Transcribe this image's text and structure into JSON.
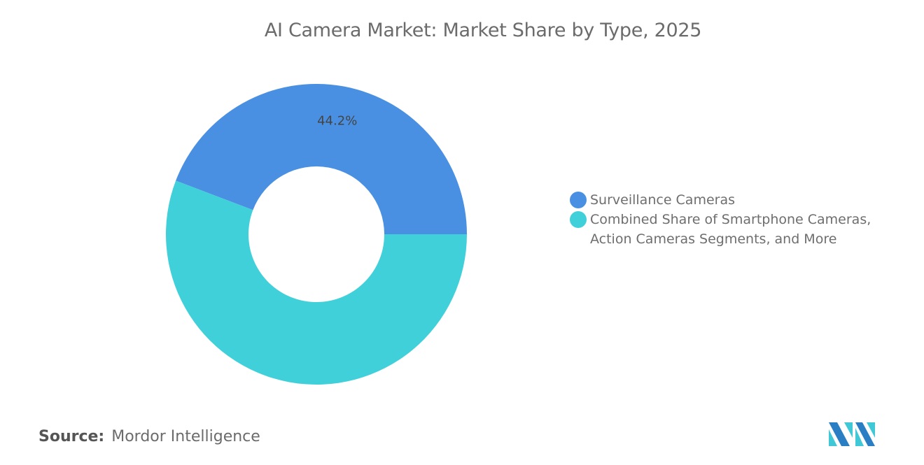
{
  "chart_data": {
    "type": "pie",
    "title": "AI Camera Market: Market Share by Type, 2025",
    "donut": true,
    "slices": [
      {
        "name": "Surveillance Cameras",
        "value": 44.2,
        "label": "44.2%",
        "color": "#4a90e2"
      },
      {
        "name": "Combined Share of Smartphone Cameras, Action Cameras Segments, and More",
        "value": 55.8,
        "label": "",
        "color": "#40d0da"
      }
    ],
    "legend_lines": [
      [
        "Surveillance Cameras"
      ],
      [
        "Combined Share of Smartphone Cameras,",
        "Action Cameras Segments, and More"
      ]
    ],
    "legend_position": "right"
  },
  "source": {
    "label": "Source:",
    "value": "Mordor Intelligence"
  },
  "logo": {
    "text": "Mordor Intelligence logo"
  }
}
